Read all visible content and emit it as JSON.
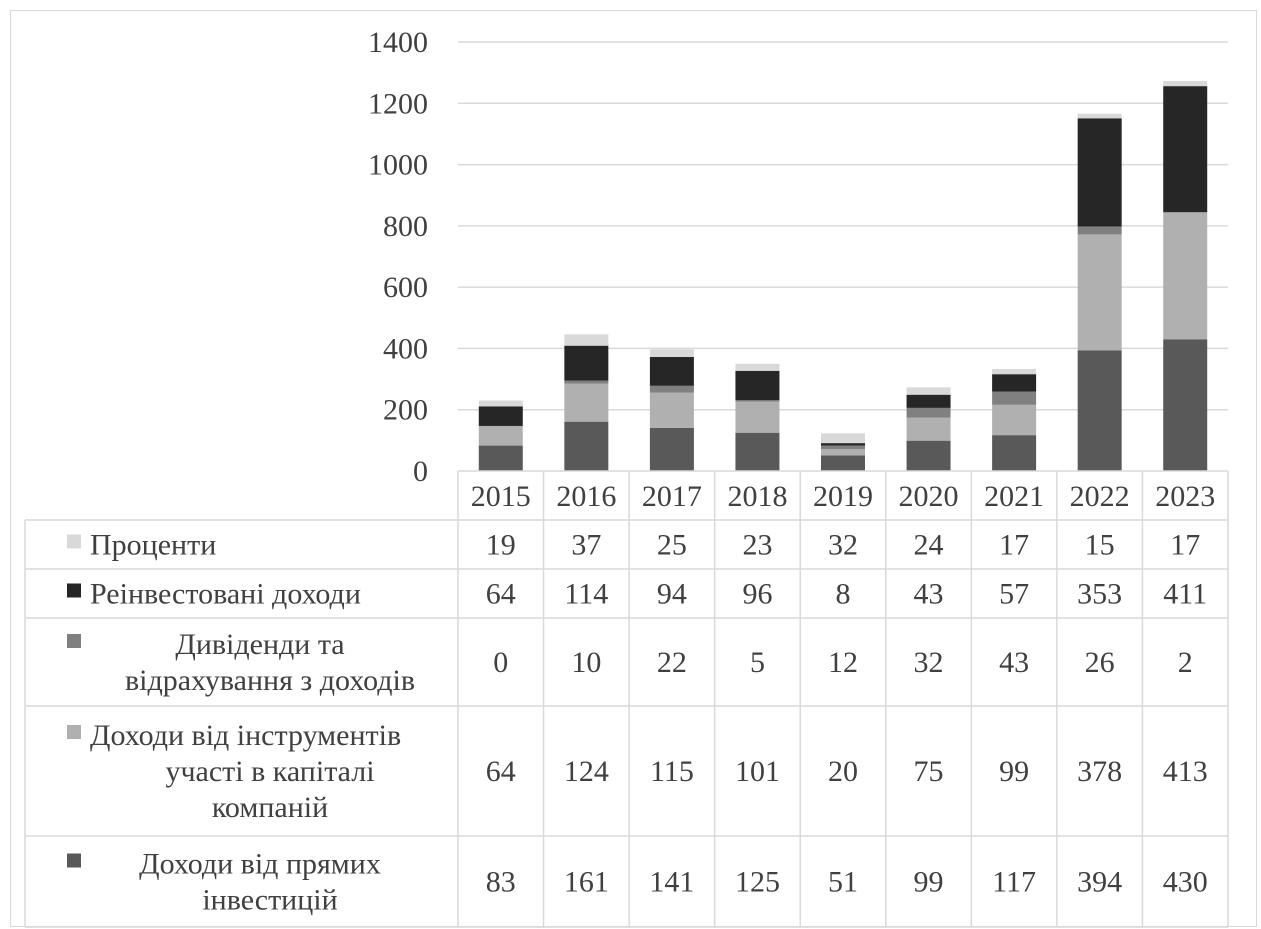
{
  "chart_data": {
    "type": "bar",
    "stacked": true,
    "categories": [
      "2015",
      "2016",
      "2017",
      "2018",
      "2019",
      "2020",
      "2021",
      "2022",
      "2023"
    ],
    "series": [
      {
        "name": "Доходи від прямих інвестицій",
        "legend_lines": [
          "Доходи від прямих",
          "інвестицій"
        ],
        "color": "#595959",
        "values": [
          83,
          161,
          141,
          125,
          51,
          99,
          117,
          394,
          430
        ]
      },
      {
        "name": "Доходи від інструментів участі в капіталі компаній",
        "legend_lines": [
          "Доходи від інструментів",
          "участі в капіталі",
          "компаній"
        ],
        "color": "#b0b0b0",
        "values": [
          64,
          124,
          115,
          101,
          20,
          75,
          99,
          378,
          413
        ]
      },
      {
        "name": "Дивіденди та відрахування з доходів",
        "legend_lines": [
          "Дивіденди та",
          "відрахування з доходів"
        ],
        "color": "#808080",
        "values": [
          0,
          10,
          22,
          5,
          12,
          32,
          43,
          26,
          2
        ]
      },
      {
        "name": "Реінвестовані доходи",
        "legend_lines": [
          "Реінвестовані доходи"
        ],
        "color": "#262626",
        "values": [
          64,
          114,
          94,
          96,
          8,
          43,
          57,
          353,
          411
        ]
      },
      {
        "name": "Проценти",
        "legend_lines": [
          "Проценти"
        ],
        "color": "#d9d9d9",
        "values": [
          19,
          37,
          25,
          23,
          32,
          24,
          17,
          15,
          17
        ]
      }
    ],
    "y_ticks": [
      "0",
      "200",
      "400",
      "600",
      "800",
      "1000",
      "1200",
      "1400"
    ],
    "ylim": [
      0,
      1400
    ],
    "grid": true,
    "legend": "data-table"
  }
}
